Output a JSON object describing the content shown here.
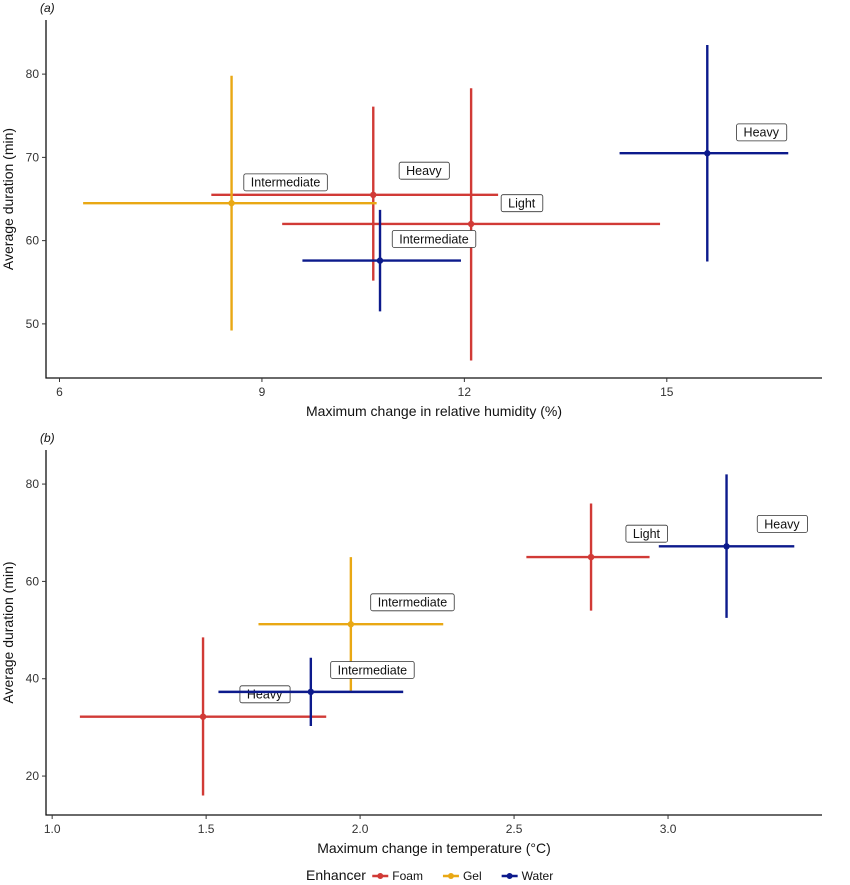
{
  "colors": {
    "Foam": "#d13a36",
    "Gel": "#e9a814",
    "Water": "#0c1a8c"
  },
  "legend": {
    "title": "Enhancer",
    "entries": [
      "Foam",
      "Gel",
      "Water"
    ]
  },
  "chart_data": [
    {
      "type": "scatter",
      "panel_label": "(a)",
      "xlabel": "Maximum change in relative humidity (%)",
      "ylabel": "Average duration (min)",
      "xlim": [
        5.8,
        17.3
      ],
      "ylim": [
        43.5,
        86.5
      ],
      "xticks": [
        6,
        9,
        12,
        15
      ],
      "xtick_labels": [
        "6",
        "9",
        "12",
        "15"
      ],
      "yticks": [
        50,
        60,
        70,
        80
      ],
      "ytick_labels": [
        "50",
        "60",
        "70",
        "80"
      ],
      "points": [
        {
          "enhancer": "Foam",
          "label": "Heavy",
          "x": 10.65,
          "y": 65.5,
          "xerr": [
            8.25,
            12.5
          ],
          "yerr": [
            55.2,
            76.1
          ],
          "label_x": 11.4,
          "label_y": 68.4
        },
        {
          "enhancer": "Foam",
          "label": "Light",
          "x": 12.1,
          "y": 62.0,
          "xerr": [
            9.3,
            14.9
          ],
          "yerr": [
            45.6,
            78.3
          ],
          "label_x": 12.85,
          "label_y": 64.5
        },
        {
          "enhancer": "Gel",
          "label": "Intermediate",
          "x": 8.55,
          "y": 64.5,
          "xerr": [
            6.35,
            10.7
          ],
          "yerr": [
            49.2,
            79.8
          ],
          "label_x": 9.35,
          "label_y": 67.0
        },
        {
          "enhancer": "Water",
          "label": "Intermediate",
          "x": 10.75,
          "y": 57.6,
          "xerr": [
            9.6,
            11.95
          ],
          "yerr": [
            51.5,
            63.7
          ],
          "label_x": 11.55,
          "label_y": 60.2
        },
        {
          "enhancer": "Water",
          "label": "Heavy",
          "x": 15.6,
          "y": 70.5,
          "xerr": [
            14.3,
            16.8
          ],
          "yerr": [
            57.5,
            83.5
          ],
          "label_x": 16.4,
          "label_y": 73.0
        }
      ]
    },
    {
      "type": "scatter",
      "panel_label": "(b)",
      "xlabel": "Maximum change in temperature (°C)",
      "ylabel": "Average duration (min)",
      "xlim": [
        0.98,
        3.5
      ],
      "ylim": [
        12,
        87
      ],
      "xticks": [
        1.0,
        1.5,
        2.0,
        2.5,
        3.0
      ],
      "xtick_labels": [
        "1.0",
        "1.5",
        "2.0",
        "2.5",
        "3.0"
      ],
      "yticks": [
        20,
        40,
        60,
        80
      ],
      "ytick_labels": [
        "20",
        "40",
        "60",
        "80"
      ],
      "points": [
        {
          "enhancer": "Foam",
          "label": "Heavy",
          "x": 1.49,
          "y": 32.2,
          "xerr": [
            1.09,
            1.89
          ],
          "yerr": [
            16.0,
            48.5
          ],
          "label_x": 1.69,
          "label_y": 36.8
        },
        {
          "enhancer": "Foam",
          "label": "Light",
          "x": 2.75,
          "y": 65.0,
          "xerr": [
            2.54,
            2.94
          ],
          "yerr": [
            54.0,
            76.0
          ],
          "label_x": 2.93,
          "label_y": 69.8
        },
        {
          "enhancer": "Gel",
          "label": "Intermediate",
          "x": 1.97,
          "y": 51.2,
          "xerr": [
            1.67,
            2.27
          ],
          "yerr": [
            37.5,
            65.0
          ],
          "label_x": 2.17,
          "label_y": 55.7
        },
        {
          "enhancer": "Water",
          "label": "Intermediate",
          "x": 1.84,
          "y": 37.3,
          "xerr": [
            1.54,
            2.14
          ],
          "yerr": [
            30.3,
            44.3
          ],
          "label_x": 2.04,
          "label_y": 41.8
        },
        {
          "enhancer": "Water",
          "label": "Heavy",
          "x": 3.19,
          "y": 67.2,
          "xerr": [
            2.97,
            3.41
          ],
          "yerr": [
            52.5,
            82.0
          ],
          "label_x": 3.37,
          "label_y": 71.8
        }
      ]
    }
  ]
}
